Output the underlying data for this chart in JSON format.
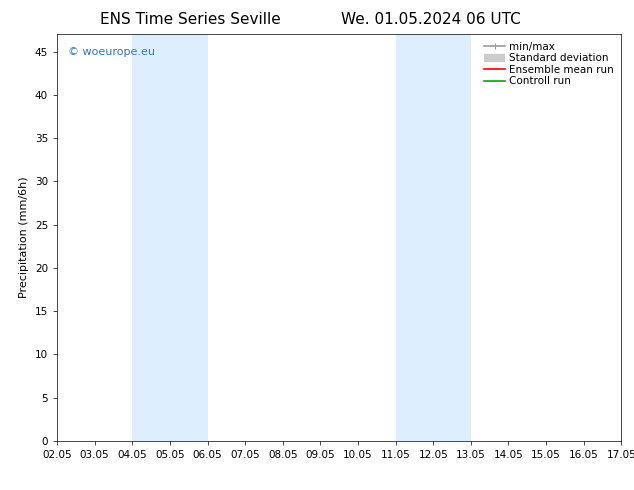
{
  "title_left": "ENS Time Series Seville",
  "title_right": "We. 01.05.2024 06 UTC",
  "ylabel": "Precipitation (mm/6h)",
  "watermark": "© woeurope.eu",
  "xlim": [
    0,
    15
  ],
  "ylim": [
    0,
    47
  ],
  "yticks": [
    0,
    5,
    10,
    15,
    20,
    25,
    30,
    35,
    40,
    45
  ],
  "xtick_labels": [
    "02.05",
    "03.05",
    "04.05",
    "05.05",
    "06.05",
    "07.05",
    "08.05",
    "09.05",
    "10.05",
    "11.05",
    "12.05",
    "13.05",
    "14.05",
    "15.05",
    "16.05",
    "17.05"
  ],
  "shade_bands": [
    {
      "x_start": 2.0,
      "x_end": 4.0
    },
    {
      "x_start": 9.0,
      "x_end": 11.0
    }
  ],
  "shade_color": "#ddeeff",
  "legend_entries": [
    {
      "label": "min/max",
      "color": "#999999",
      "lw": 1.2
    },
    {
      "label": "Standard deviation",
      "color": "#cccccc",
      "lw": 6
    },
    {
      "label": "Ensemble mean run",
      "color": "#ff0000",
      "lw": 1.2
    },
    {
      "label": "Controll run",
      "color": "#00aa00",
      "lw": 1.2
    }
  ],
  "bg_color": "#ffffff",
  "watermark_color": "#3377bb",
  "title_fontsize": 11,
  "ylabel_fontsize": 8,
  "tick_fontsize": 7.5,
  "legend_fontsize": 7.5,
  "watermark_fontsize": 8
}
